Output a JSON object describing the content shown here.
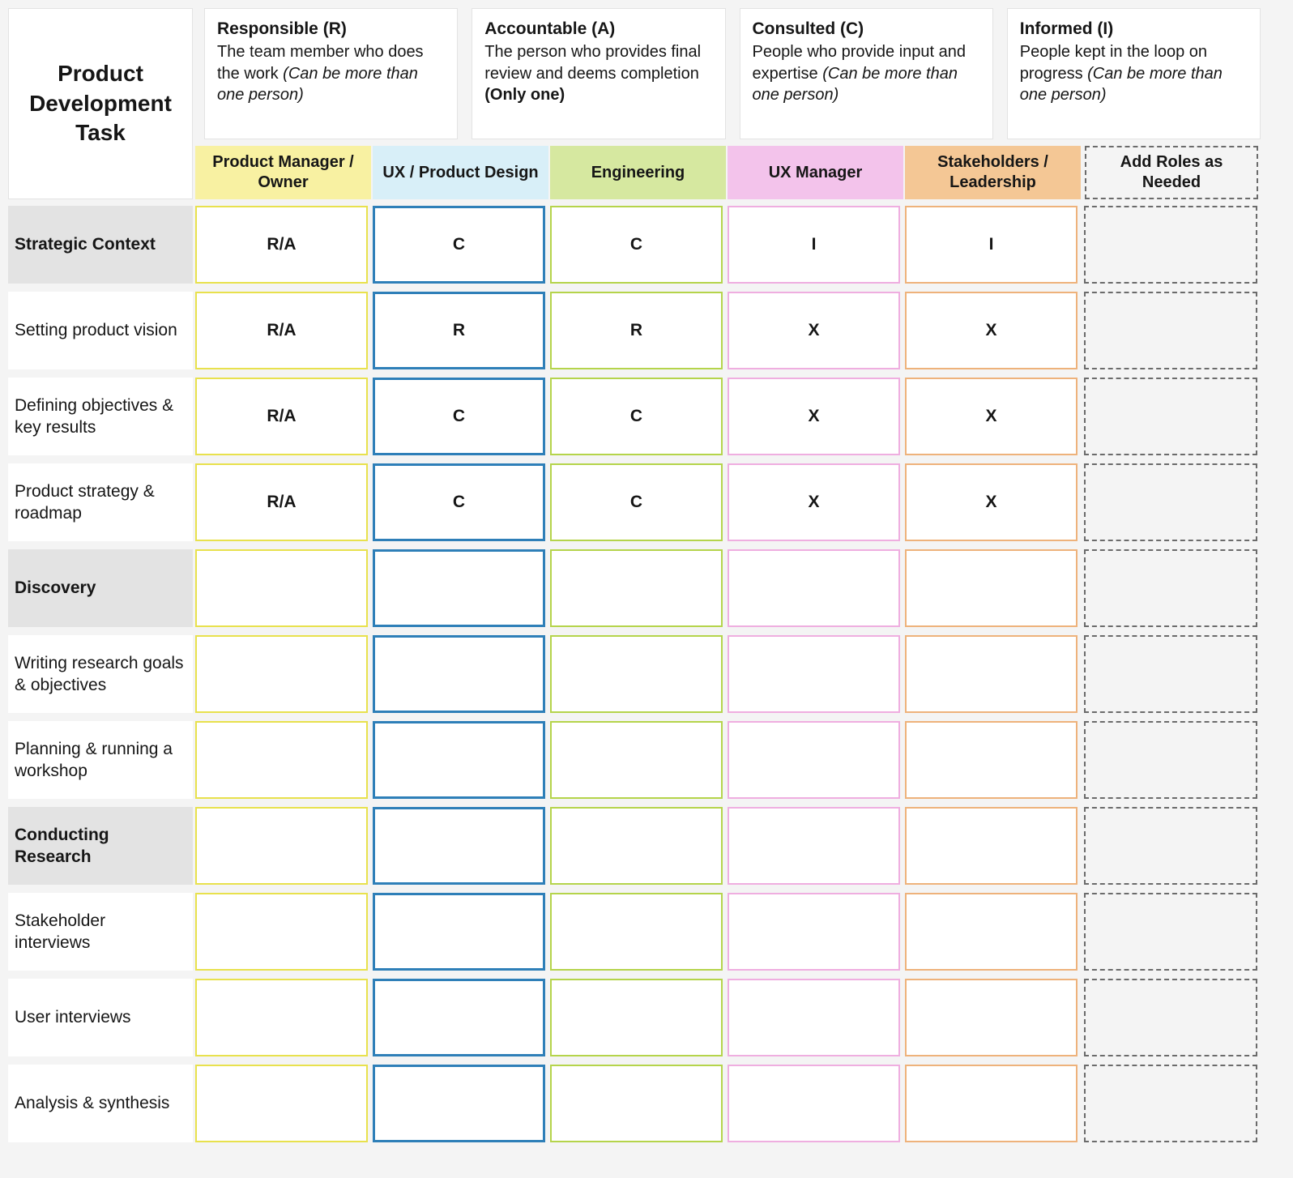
{
  "page": {
    "title": "Product Development Task"
  },
  "legend": [
    {
      "title": "Responsible (R)",
      "desc": "The team member who does the work",
      "note": "(Can be more than one person)",
      "note_style": "italic"
    },
    {
      "title": "Accountable (A)",
      "desc": "The person who provides final review and deems completion",
      "note": "(Only one)",
      "note_style": "bold"
    },
    {
      "title": "Consulted (C)",
      "desc": "People who provide input and expertise",
      "note": "(Can be more than one person)",
      "note_style": "italic"
    },
    {
      "title": "Informed (I)",
      "desc": "People kept in the loop on progress",
      "note": "(Can be more than one person)",
      "note_style": "italic"
    }
  ],
  "columns": [
    {
      "label": "Product Manager / Owner",
      "bg": "#f8f1a2",
      "border": "#e8e14d",
      "dashed": false
    },
    {
      "label": "UX / Product Design",
      "bg": "#d8eff8",
      "border": "#2e7fb8",
      "dashed": false
    },
    {
      "label": "Engineering",
      "bg": "#d6e8a0",
      "border": "#b5d44b",
      "dashed": false
    },
    {
      "label": "UX Manager",
      "bg": "#f3c3eb",
      "border": "#efaee0",
      "dashed": false
    },
    {
      "label": "Stakeholders / Leadership",
      "bg": "#f4c795",
      "border": "#eeb27b",
      "dashed": false
    },
    {
      "label": "Add Roles as Needed",
      "bg": "#f4f4f4",
      "border": "#6b6b6b",
      "dashed": true
    }
  ],
  "rows": [
    {
      "task": "Strategic Context",
      "section": true,
      "cells": [
        "R/A",
        "C",
        "C",
        "I",
        "I",
        ""
      ]
    },
    {
      "task": "Setting product vision",
      "section": false,
      "cells": [
        "R/A",
        "R",
        "R",
        "X",
        "X",
        ""
      ]
    },
    {
      "task": "Defining objectives & key results",
      "section": false,
      "cells": [
        "R/A",
        "C",
        "C",
        "X",
        "X",
        ""
      ]
    },
    {
      "task": "Product strategy & roadmap",
      "section": false,
      "cells": [
        "R/A",
        "C",
        "C",
        "X",
        "X",
        ""
      ]
    },
    {
      "task": "Discovery",
      "section": true,
      "cells": [
        "",
        "",
        "",
        "",
        "",
        ""
      ]
    },
    {
      "task": "Writing research goals & objectives",
      "section": false,
      "cells": [
        "",
        "",
        "",
        "",
        "",
        ""
      ]
    },
    {
      "task": "Planning & running a workshop",
      "section": false,
      "cells": [
        "",
        "",
        "",
        "",
        "",
        ""
      ]
    },
    {
      "task": "Conducting Research",
      "section": true,
      "cells": [
        "",
        "",
        "",
        "",
        "",
        ""
      ]
    },
    {
      "task": "Stakeholder interviews",
      "section": false,
      "cells": [
        "",
        "",
        "",
        "",
        "",
        ""
      ]
    },
    {
      "task": "User interviews",
      "section": false,
      "cells": [
        "",
        "",
        "",
        "",
        "",
        ""
      ]
    },
    {
      "task": "Analysis & synthesis",
      "section": false,
      "cells": [
        "",
        "",
        "",
        "",
        "",
        ""
      ]
    }
  ]
}
